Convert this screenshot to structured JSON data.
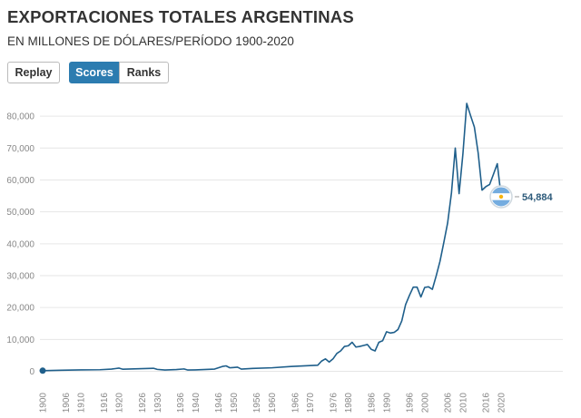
{
  "header": {
    "title": "EXPORTACIONES TOTALES ARGENTINAS",
    "subtitle": "EN MILLONES DE DÓLARES/PERÍODO 1900-2020"
  },
  "controls": {
    "replay_label": "Replay",
    "scores_label": "Scores",
    "ranks_label": "Ranks"
  },
  "colors": {
    "line": "#1f5f8b",
    "accent": "#2c7cb0",
    "flag_blue": "#74acdf",
    "flag_sun": "#f6b40e"
  },
  "chart_data": {
    "type": "line",
    "title": "EXPORTACIONES TOTALES ARGENTINAS",
    "subtitle": "EN MILLONES DE DÓLARES/PERÍODO 1900-2020",
    "xlabel": "",
    "ylabel": "",
    "xlim": [
      1900,
      2020
    ],
    "ylim": [
      0,
      88000
    ],
    "yticks": [
      0,
      10000,
      20000,
      30000,
      40000,
      50000,
      60000,
      70000,
      80000
    ],
    "ytick_labels": [
      "0",
      "10,000",
      "20,000",
      "30,000",
      "40,000",
      "50,000",
      "60,000",
      "70,000",
      "80,000"
    ],
    "xtick_labels": [
      "1900",
      "1906",
      "1910",
      "1916",
      "1920",
      "1926",
      "1930",
      "1936",
      "1940",
      "1946",
      "1950",
      "1956",
      "1960",
      "1966",
      "1970",
      "1976",
      "1980",
      "1986",
      "1990",
      "1996",
      "2000",
      "2006",
      "2010",
      "2016",
      "2020"
    ],
    "grid": true,
    "series": [
      {
        "name": "Argentina",
        "end_label": "54,884",
        "x": [
          1900,
          1905,
          1910,
          1915,
          1918,
          1920,
          1921,
          1925,
          1929,
          1930,
          1932,
          1935,
          1937,
          1938,
          1940,
          1945,
          1947,
          1948,
          1949,
          1950,
          1951,
          1952,
          1955,
          1960,
          1965,
          1970,
          1972,
          1973,
          1974,
          1975,
          1976,
          1977,
          1978,
          1979,
          1980,
          1981,
          1982,
          1983,
          1984,
          1985,
          1986,
          1987,
          1988,
          1989,
          1990,
          1991,
          1992,
          1993,
          1994,
          1995,
          1996,
          1997,
          1998,
          1999,
          2000,
          2001,
          2002,
          2003,
          2004,
          2005,
          2006,
          2007,
          2008,
          2009,
          2010,
          2011,
          2012,
          2013,
          2014,
          2015,
          2016,
          2017,
          2018,
          2019,
          2020
        ],
        "values": [
          200,
          350,
          450,
          500,
          700,
          1000,
          650,
          800,
          950,
          600,
          400,
          550,
          750,
          400,
          450,
          700,
          1500,
          1700,
          1100,
          1200,
          1300,
          700,
          900,
          1100,
          1500,
          1800,
          1900,
          3200,
          3900,
          2900,
          3900,
          5600,
          6400,
          7800,
          8000,
          9100,
          7600,
          7800,
          8100,
          8400,
          6900,
          6400,
          9100,
          9600,
          12400,
          12000,
          12200,
          13100,
          15800,
          20900,
          23800,
          26400,
          26400,
          23300,
          26300,
          26500,
          25700,
          29900,
          34500,
          40400,
          46500,
          55900,
          70000,
          55700,
          68200,
          84000,
          80200,
          76600,
          68400,
          56800,
          57900,
          58600,
          61800,
          65100,
          54884
        ]
      }
    ]
  }
}
